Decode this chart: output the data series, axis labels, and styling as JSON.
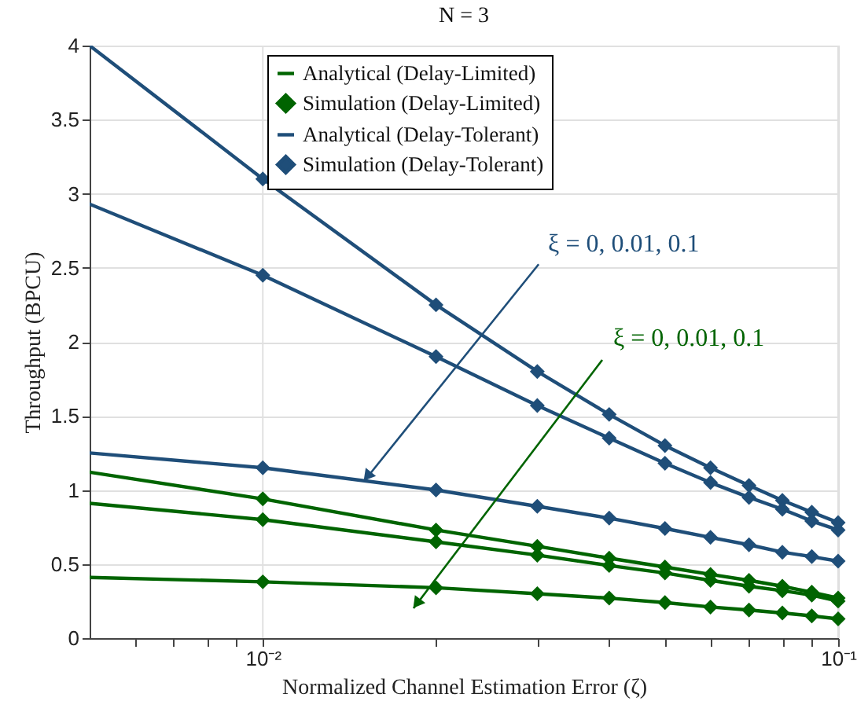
{
  "chart_data": {
    "type": "line",
    "title": "N = 3",
    "xlabel": "Normalized Channel Estimation Error (ζ)",
    "ylabel": "Throughput (BPCU)",
    "log": "x",
    "xlim": [
      0.005,
      0.1
    ],
    "ylim": [
      0,
      4
    ],
    "xticks": [
      {
        "value": 0.006,
        "label": null
      },
      {
        "value": 0.007,
        "label": null
      },
      {
        "value": 0.008,
        "label": null
      },
      {
        "value": 0.009,
        "label": null
      },
      {
        "value": 0.01,
        "label": "10⁻²"
      },
      {
        "value": 0.02,
        "label": null
      },
      {
        "value": 0.03,
        "label": null
      },
      {
        "value": 0.04,
        "label": null
      },
      {
        "value": 0.05,
        "label": null
      },
      {
        "value": 0.06,
        "label": null
      },
      {
        "value": 0.07,
        "label": null
      },
      {
        "value": 0.08,
        "label": null
      },
      {
        "value": 0.09,
        "label": null
      },
      {
        "value": 0.1,
        "label": "10⁻¹"
      }
    ],
    "yticks": [
      0,
      0.5,
      1,
      1.5,
      2,
      2.5,
      3,
      3.5,
      4
    ],
    "grid": true,
    "legend": "top",
    "line_style": "solid",
    "series": [
      {
        "name": "Analytical (Delay-Limited)",
        "marker": "none",
        "color": "#006400",
        "x": [
          0.005,
          0.01,
          0.02,
          0.03,
          0.04,
          0.05,
          0.06,
          0.07,
          0.08,
          0.09,
          0.1
        ],
        "values": [
          1.12,
          0.94,
          0.73,
          0.62,
          0.54,
          0.48,
          0.43,
          0.39,
          0.35,
          0.31,
          0.27
        ]
      },
      {
        "marker": "none",
        "color": "#006400",
        "x": [
          0.005,
          0.01,
          0.02,
          0.03,
          0.04,
          0.05,
          0.06,
          0.07,
          0.08,
          0.09,
          0.1
        ],
        "values": [
          0.91,
          0.8,
          0.65,
          0.56,
          0.49,
          0.44,
          0.39,
          0.35,
          0.32,
          0.29,
          0.25
        ]
      },
      {
        "marker": "none",
        "color": "#006400",
        "x": [
          0.005,
          0.01,
          0.02,
          0.03,
          0.04,
          0.05,
          0.06,
          0.07,
          0.08,
          0.09,
          0.1
        ],
        "values": [
          0.41,
          0.38,
          0.34,
          0.3,
          0.27,
          0.24,
          0.21,
          0.19,
          0.17,
          0.15,
          0.13
        ]
      },
      {
        "name": "Simulation (Delay-Limited)",
        "type": "scatter",
        "marker": "diamond",
        "color": "#006400",
        "x": [
          0.01,
          0.02,
          0.03,
          0.04,
          0.05,
          0.06,
          0.07,
          0.08,
          0.09,
          0.1
        ],
        "values": [
          0.94,
          0.73,
          0.62,
          0.54,
          0.48,
          0.43,
          0.39,
          0.35,
          0.31,
          0.27
        ]
      },
      {
        "type": "scatter",
        "marker": "diamond",
        "color": "#006400",
        "x": [
          0.01,
          0.02,
          0.03,
          0.04,
          0.05,
          0.06,
          0.07,
          0.08,
          0.09,
          0.1
        ],
        "values": [
          0.8,
          0.65,
          0.56,
          0.49,
          0.44,
          0.39,
          0.35,
          0.32,
          0.29,
          0.25
        ]
      },
      {
        "type": "scatter",
        "marker": "diamond",
        "color": "#006400",
        "x": [
          0.01,
          0.02,
          0.03,
          0.04,
          0.05,
          0.06,
          0.07,
          0.08,
          0.09,
          0.1
        ],
        "values": [
          0.38,
          0.34,
          0.3,
          0.27,
          0.24,
          0.21,
          0.19,
          0.17,
          0.15,
          0.13
        ]
      },
      {
        "name": "Analytical (Delay-Tolerant)",
        "marker": "none",
        "color": "#1f4e79",
        "x": [
          0.005,
          0.01,
          0.02,
          0.03,
          0.04,
          0.05,
          0.06,
          0.07,
          0.08,
          0.09,
          0.1
        ],
        "values": [
          4.0,
          3.1,
          2.25,
          1.8,
          1.51,
          1.3,
          1.15,
          1.03,
          0.93,
          0.85,
          0.78
        ]
      },
      {
        "marker": "none",
        "color": "#1f4e79",
        "x": [
          0.005,
          0.01,
          0.02,
          0.03,
          0.04,
          0.05,
          0.06,
          0.07,
          0.08,
          0.09,
          0.1
        ],
        "values": [
          2.93,
          2.45,
          1.9,
          1.57,
          1.35,
          1.18,
          1.05,
          0.95,
          0.87,
          0.79,
          0.73
        ]
      },
      {
        "marker": "none",
        "color": "#1f4e79",
        "x": [
          0.005,
          0.01,
          0.02,
          0.03,
          0.04,
          0.05,
          0.06,
          0.07,
          0.08,
          0.09,
          0.1
        ],
        "values": [
          1.25,
          1.15,
          1.0,
          0.89,
          0.81,
          0.74,
          0.68,
          0.63,
          0.58,
          0.55,
          0.52
        ]
      },
      {
        "name": "Simulation (Delay-Tolerant)",
        "type": "scatter",
        "marker": "diamond",
        "color": "#1f4e79",
        "x": [
          0.01,
          0.02,
          0.03,
          0.04,
          0.05,
          0.06,
          0.07,
          0.08,
          0.09,
          0.1
        ],
        "values": [
          3.1,
          2.25,
          1.8,
          1.51,
          1.3,
          1.15,
          1.03,
          0.93,
          0.85,
          0.78
        ]
      },
      {
        "type": "scatter",
        "marker": "diamond",
        "color": "#1f4e79",
        "x": [
          0.01,
          0.02,
          0.03,
          0.04,
          0.05,
          0.06,
          0.07,
          0.08,
          0.09,
          0.1
        ],
        "values": [
          2.45,
          1.9,
          1.57,
          1.35,
          1.18,
          1.05,
          0.95,
          0.87,
          0.79,
          0.73
        ]
      },
      {
        "type": "scatter",
        "marker": "diamond",
        "color": "#1f4e79",
        "x": [
          0.01,
          0.02,
          0.03,
          0.04,
          0.05,
          0.06,
          0.07,
          0.08,
          0.09,
          0.1
        ],
        "values": [
          1.15,
          1.0,
          0.89,
          0.81,
          0.74,
          0.68,
          0.63,
          0.58,
          0.55,
          0.52
        ]
      }
    ],
    "annotations": [
      "ξ = 0, 0.01, 0.1",
      {
        "text": "ξ = 0, 0.01, 0.1",
        "x": 0.015,
        "y": 1.06
      }
    ]
  }
}
